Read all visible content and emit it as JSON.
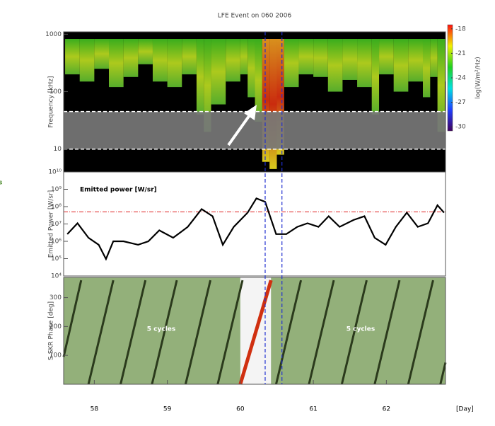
{
  "side_text": "s",
  "chart_data": [
    {
      "type": "spectrogram",
      "title": "LFE Event on 060 2006",
      "ylabel": "Frequency [kHz]",
      "log_y": true,
      "ylim": [
        4,
        1100
      ],
      "yticks": [
        10,
        100,
        1000
      ],
      "xlim": [
        57.58,
        62.81
      ],
      "x": [
        57.6,
        57.8,
        58.0,
        58.2,
        58.4,
        58.6,
        58.8,
        59.0,
        59.2,
        59.4,
        59.5,
        59.6,
        59.8,
        60.0,
        60.1,
        60.2,
        60.3,
        60.4,
        60.5,
        60.6,
        60.8,
        61.0,
        61.2,
        61.4,
        61.6,
        61.8,
        61.9,
        62.1,
        62.3,
        62.5,
        62.6,
        62.7,
        62.8
      ],
      "values": [
        200,
        150,
        250,
        120,
        180,
        300,
        150,
        120,
        200,
        40,
        20,
        60,
        150,
        200,
        80,
        30,
        6,
        4.5,
        8,
        120,
        200,
        180,
        100,
        160,
        120,
        40,
        200,
        100,
        150,
        80,
        180,
        20,
        150
      ],
      "band": [
        10,
        45
      ],
      "event_lines": [
        60.34,
        60.57
      ],
      "colorbar": {
        "label": "log(W/m²/Hz)",
        "lim": [
          -30.5,
          -17.5
        ],
        "ticks": [
          -18,
          -21,
          -24,
          -27,
          -30
        ]
      }
    },
    {
      "type": "line",
      "annotation": "Emitted power [W/sr]",
      "ylabel": "Emitted Power [W/sr]",
      "log_y": true,
      "ylim": [
        10000,
        10000000000
      ],
      "yticks": [
        {
          "value": 10000,
          "label": "10⁴"
        },
        {
          "value": 100000,
          "label": "10⁵"
        },
        {
          "value": 1000000,
          "label": "10⁶"
        },
        {
          "value": 10000000,
          "label": "10⁷"
        },
        {
          "value": 100000000,
          "label": "10⁸"
        },
        {
          "value": 1000000000,
          "label": "10⁹"
        },
        {
          "value": 10000000000,
          "label": "10¹⁰"
        }
      ],
      "xlim": [
        57.58,
        62.81
      ],
      "x": [
        57.63,
        57.77,
        57.92,
        58.06,
        58.16,
        58.26,
        58.4,
        58.6,
        58.74,
        58.89,
        59.08,
        59.28,
        59.47,
        59.62,
        59.76,
        59.91,
        60.1,
        60.22,
        60.34,
        60.49,
        60.63,
        60.78,
        60.92,
        61.07,
        61.21,
        61.36,
        61.55,
        61.7,
        61.84,
        61.99,
        62.13,
        62.28,
        62.43,
        62.57,
        62.7,
        62.79
      ],
      "values": [
        2600000,
        11000000,
        1600000,
        630000,
        95000,
        1000000,
        1000000,
        630000,
        1000000,
        4300000,
        1600000,
        6800000,
        72000000,
        28000000,
        630000,
        6800000,
        45000000,
        300000000,
        190000000,
        2600000,
        2600000,
        6800000,
        11000000,
        6800000,
        28000000,
        6800000,
        17000000,
        28000000,
        1600000,
        630000,
        6800000,
        45000000,
        6800000,
        11000000,
        120000000,
        45000000
      ],
      "color": "#000000",
      "threshold": 50000000,
      "threshold_color": "#e02020"
    },
    {
      "type": "phase",
      "ylabel": "S-SKR Phase [deg]",
      "ylim": [
        0,
        370
      ],
      "yticks": [
        100,
        200,
        300
      ],
      "xlim": [
        57.58,
        62.81
      ],
      "xticks": [
        58,
        59,
        60,
        61,
        62
      ],
      "xlabel": "[Day]",
      "spans": [
        [
          57.58,
          60.0
        ],
        [
          60.42,
          62.81
        ]
      ],
      "span_color": "#93b07a",
      "series": [
        {
          "color": "#2b3a1c",
          "x": [
            57.58,
            57.82,
            57.82,
            57.92,
            58.26,
            58.26,
            58.36,
            58.7,
            58.7,
            58.79,
            59.13,
            59.13,
            59.25,
            59.59,
            59.59,
            59.69,
            60.03,
            60.03,
            60.49,
            60.83,
            60.83,
            60.94,
            61.28,
            61.28,
            61.39,
            61.73,
            61.73,
            61.84,
            62.18,
            62.18,
            62.3,
            62.64,
            62.64,
            62.74,
            62.81
          ],
          "values": [
            95,
            360,
            null,
            0,
            360,
            null,
            0,
            360,
            null,
            0,
            360,
            null,
            0,
            360,
            null,
            0,
            360,
            null,
            0,
            360,
            null,
            0,
            360,
            null,
            0,
            360,
            null,
            0,
            360,
            null,
            0,
            360,
            null,
            0,
            75
          ]
        },
        {
          "color": "#d03010",
          "x": [
            60.0,
            60.42
          ],
          "values": [
            0,
            360
          ]
        }
      ],
      "annotations": [
        "5 cycles",
        "5 cycles"
      ]
    }
  ]
}
